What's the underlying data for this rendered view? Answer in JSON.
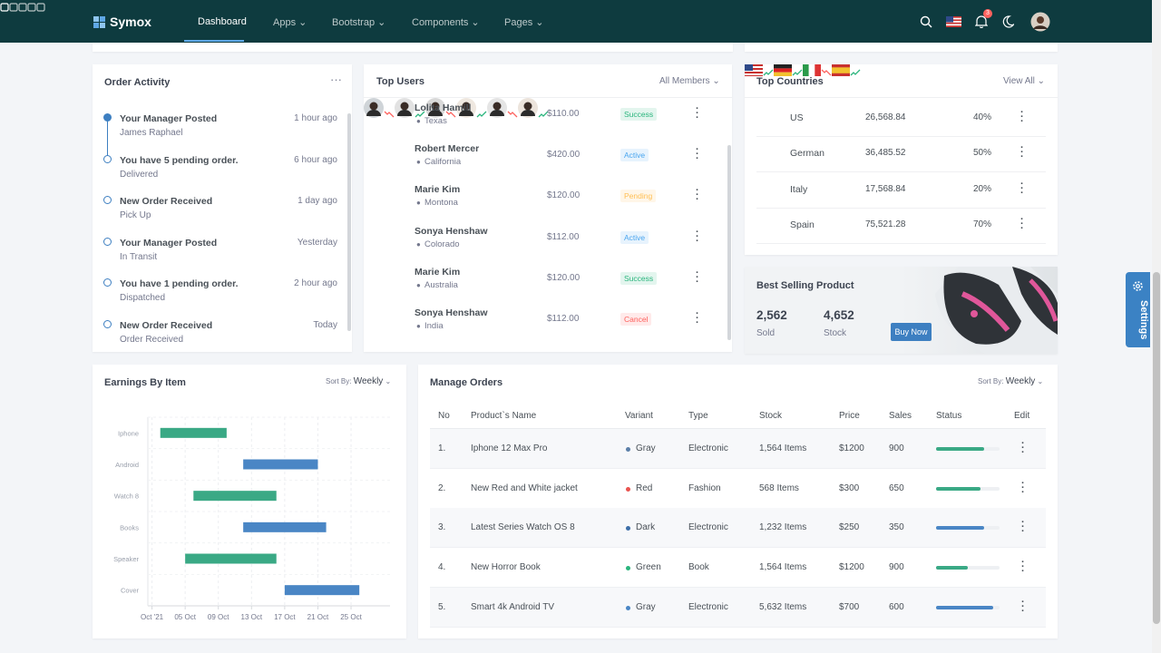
{
  "nav": {
    "brand": "Symox",
    "items": [
      "Dashboard",
      "Apps",
      "Bootstrap",
      "Components",
      "Pages"
    ],
    "badge": "3"
  },
  "order_activity": {
    "title": "Order Activity",
    "items": [
      {
        "title": "Your Manager Posted",
        "sub": "James Raphael",
        "time": "1 hour ago"
      },
      {
        "title": "You have 5 pending order.",
        "sub": "Delivered",
        "time": "6 hour ago"
      },
      {
        "title": "New Order Received",
        "sub": "Pick Up",
        "time": "1 day ago"
      },
      {
        "title": "Your Manager Posted",
        "sub": "In Transit",
        "time": "Yesterday"
      },
      {
        "title": "You have 1 pending order.",
        "sub": "Dispatched",
        "time": "2 hour ago"
      },
      {
        "title": "New Order Received",
        "sub": "Order Received",
        "time": "Today"
      }
    ]
  },
  "top_users": {
    "title": "Top Users",
    "filter": "All Members",
    "rows": [
      {
        "name": "Lolita Hamill",
        "location": "Texas",
        "amount": "$110.00",
        "trend": "down",
        "status": "Success",
        "status_color": "#2ab57d"
      },
      {
        "name": "Robert Mercer",
        "location": "California",
        "amount": "$420.00",
        "trend": "up",
        "status": "Active",
        "status_color": "#4ba6ef"
      },
      {
        "name": "Marie Kim",
        "location": "Montona",
        "amount": "$120.00",
        "trend": "down",
        "status": "Pending",
        "status_color": "#ffbf53"
      },
      {
        "name": "Sonya Henshaw",
        "location": "Colorado",
        "amount": "$112.00",
        "trend": "up",
        "status": "Active",
        "status_color": "#4ba6ef"
      },
      {
        "name": "Marie Kim",
        "location": "Australia",
        "amount": "$120.00",
        "trend": "down",
        "status": "Success",
        "status_color": "#2ab57d"
      },
      {
        "name": "Sonya Henshaw",
        "location": "India",
        "amount": "$112.00",
        "trend": "up",
        "status": "Cancel",
        "status_color": "#fd625e"
      }
    ]
  },
  "top_countries": {
    "title": "Top Countries",
    "filter": "View All",
    "rows": [
      {
        "name": "US",
        "amount": "26,568.84",
        "trend": "up",
        "percent": "40%"
      },
      {
        "name": "German",
        "amount": "36,485.52",
        "trend": "up",
        "percent": "50%"
      },
      {
        "name": "Italy",
        "amount": "17,568.84",
        "trend": "down",
        "percent": "20%"
      },
      {
        "name": "Spain",
        "amount": "75,521.28",
        "trend": "up",
        "percent": "70%"
      }
    ]
  },
  "best_selling": {
    "title": "Best Selling Product",
    "stats": [
      {
        "value": "2,562",
        "label": "Sold"
      },
      {
        "value": "4,652",
        "label": "Stock"
      }
    ],
    "button": "Buy Now"
  },
  "settings": "Settings",
  "earnings": {
    "sort_label": "Sort By:",
    "sort_value": "Weekly"
  },
  "chart_data": {
    "type": "range_bar",
    "title": "Earnings By Item",
    "categories": [
      "Iphone",
      "Android",
      "Watch 8",
      "Books",
      "Speaker",
      "Cover"
    ],
    "starts": [
      2,
      12,
      6,
      12,
      5,
      17
    ],
    "ends": [
      10,
      21,
      16,
      22,
      16,
      26
    ],
    "colors": [
      "#3aa985",
      "#4a86c5",
      "#3aa985",
      "#4a86c5",
      "#3aa985",
      "#4a86c5"
    ],
    "xlim": [
      0.5,
      29.7
    ],
    "xticks": [
      {
        "value": 1,
        "label": "Oct '21"
      },
      {
        "value": 5,
        "label": "05 Oct"
      },
      {
        "value": 9,
        "label": "09 Oct"
      },
      {
        "value": 13,
        "label": "13 Oct"
      },
      {
        "value": 17,
        "label": "17 Oct"
      },
      {
        "value": 21,
        "label": "21 Oct"
      },
      {
        "value": 25,
        "label": "25 Oct"
      }
    ],
    "grid": true
  },
  "manage_orders": {
    "title": "Manage Orders",
    "sort_label": "Sort By:",
    "sort_value": "Weekly",
    "headers": [
      "No",
      "Product`s Name",
      "Variant",
      "Type",
      "Stock",
      "Price",
      "Sales",
      "Status",
      "Edit"
    ],
    "rows": [
      {
        "no": "1.",
        "name": "Iphone 12 Max Pro",
        "variant": "Gray",
        "dot_color": "#5b7fa8",
        "type": "Electronic",
        "stock": "1,564 Items",
        "price": "$1200",
        "sales": "900",
        "progress": 75,
        "progress_color": "#3aa985"
      },
      {
        "no": "2.",
        "name": "New Red and White jacket",
        "variant": "Red",
        "dot_color": "#e9534f",
        "type": "Fashion",
        "stock": "568 Items",
        "price": "$300",
        "sales": "650",
        "progress": 70,
        "progress_color": "#3aa985"
      },
      {
        "no": "3.",
        "name": "Latest Series Watch OS 8",
        "variant": "Dark",
        "dot_color": "#3c6ea8",
        "type": "Electronic",
        "stock": "1,232 Items",
        "price": "$250",
        "sales": "350",
        "progress": 75,
        "progress_color": "#4a86c5"
      },
      {
        "no": "4.",
        "name": "New Horror Book",
        "variant": "Green",
        "dot_color": "#2ab57d",
        "type": "Book",
        "stock": "1,564 Items",
        "price": "$1200",
        "sales": "900",
        "progress": 50,
        "progress_color": "#3aa985"
      },
      {
        "no": "5.",
        "name": "Smart 4k Android TV",
        "variant": "Gray",
        "dot_color": "#4a86c5",
        "type": "Electronic",
        "stock": "5,632 Items",
        "price": "$700",
        "sales": "600",
        "progress": 90,
        "progress_color": "#4a86c5"
      }
    ]
  }
}
